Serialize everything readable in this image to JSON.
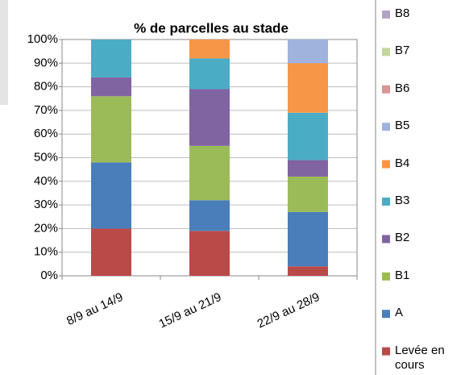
{
  "chart_data": {
    "type": "stacked_bar",
    "title": "% de parcelles au stade",
    "categories": [
      "8/9 au 14/9",
      "15/9 au 21/9",
      "22/9 au 28/9"
    ],
    "series": [
      {
        "name": "Levée en cours",
        "color": "#b94a48",
        "values": [
          20,
          19,
          4
        ]
      },
      {
        "name": "A",
        "color": "#4a7ebb",
        "values": [
          28,
          13,
          23
        ]
      },
      {
        "name": "B1",
        "color": "#9bbb59",
        "values": [
          28,
          23,
          15
        ]
      },
      {
        "name": "B2",
        "color": "#8064a2",
        "values": [
          8,
          24,
          7
        ]
      },
      {
        "name": "B3",
        "color": "#4bacc6",
        "values": [
          16,
          13,
          20
        ]
      },
      {
        "name": "B4",
        "color": "#f79646",
        "values": [
          0,
          8,
          21
        ]
      },
      {
        "name": "B5",
        "color": "#9fb3dc",
        "values": [
          0,
          0,
          10
        ]
      },
      {
        "name": "B6",
        "color": "#d99694",
        "values": [
          0,
          0,
          0
        ]
      },
      {
        "name": "B7",
        "color": "#c3d69b",
        "values": [
          0,
          0,
          0
        ]
      },
      {
        "name": "B8",
        "color": "#b3a2c7",
        "values": [
          0,
          0,
          0
        ]
      }
    ],
    "ylim": [
      0,
      100
    ],
    "yticks": [
      {
        "value": 0,
        "label": "0%"
      },
      {
        "value": 10,
        "label": "10%"
      },
      {
        "value": 20,
        "label": "20%"
      },
      {
        "value": 30,
        "label": "30%"
      },
      {
        "value": 40,
        "label": "40%"
      },
      {
        "value": 50,
        "label": "50%"
      },
      {
        "value": 60,
        "label": "60%"
      },
      {
        "value": 70,
        "label": "70%"
      },
      {
        "value": 80,
        "label": "80%"
      },
      {
        "value": 90,
        "label": "90%"
      },
      {
        "value": 100,
        "label": "100%"
      }
    ],
    "grid": true,
    "legend": "right"
  }
}
